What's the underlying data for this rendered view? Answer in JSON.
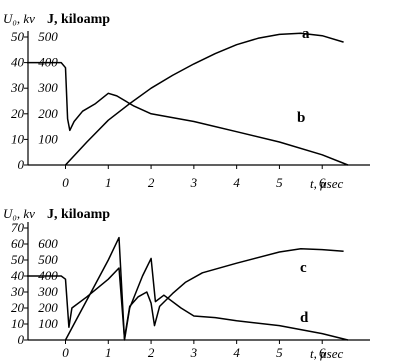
{
  "chart_data": [
    {
      "type": "line",
      "ylabel_left": "U₀, kv",
      "ylabel_right": "J, kiloamp",
      "xlabel": "t, μsec",
      "x_ticks": [
        "0",
        "1",
        "2",
        "3",
        "4",
        "5",
        "6"
      ],
      "y_left_ticks": [
        "0",
        "10",
        "20",
        "30",
        "40",
        "50"
      ],
      "y_right_ticks": [
        "100",
        "200",
        "300",
        "400",
        "500"
      ],
      "xlim": [
        -0.9,
        7
      ],
      "ylim_left": [
        0,
        50
      ],
      "ylim_right": [
        0,
        500
      ],
      "series": [
        {
          "name": "a",
          "axis": "right",
          "x": [
            0,
            0.5,
            1,
            1.5,
            2,
            2.5,
            3,
            3.5,
            4,
            4.5,
            5,
            5.5,
            6,
            6.5
          ],
          "y": [
            0,
            90,
            175,
            240,
            300,
            350,
            395,
            435,
            470,
            495,
            510,
            515,
            505,
            480
          ]
        },
        {
          "name": "b",
          "axis": "left",
          "x": [
            -0.9,
            -0.1,
            0,
            0.05,
            0.1,
            0.2,
            0.4,
            0.7,
            1.0,
            1.2,
            1.6,
            2.0,
            3.0,
            4.0,
            5.0,
            6.0,
            6.6
          ],
          "y": [
            40,
            40,
            38,
            18,
            13.5,
            17,
            21,
            24,
            28,
            27,
            23,
            20,
            17,
            13,
            9,
            4,
            0
          ]
        }
      ]
    },
    {
      "type": "line",
      "ylabel_left": "U₀, kv",
      "ylabel_right": "J, kiloamp",
      "xlabel": "t, μsec",
      "x_ticks": [
        "0",
        "1",
        "2",
        "3",
        "4",
        "5",
        "6"
      ],
      "y_left_ticks": [
        "0",
        "10",
        "20",
        "30",
        "40",
        "50",
        "60",
        "70"
      ],
      "y_right_ticks": [
        "100",
        "200",
        "300",
        "400",
        "500",
        "600"
      ],
      "xlim": [
        -0.9,
        7
      ],
      "ylim_left": [
        0,
        70
      ],
      "ylim_right": [
        0,
        700
      ],
      "series": [
        {
          "name": "c",
          "axis": "right",
          "x": [
            -0.9,
            -0.1,
            0,
            0.08,
            0.15,
            0.5,
            1.0,
            1.25,
            1.38,
            1.5,
            1.7,
            1.9,
            2.0,
            2.08,
            2.2,
            2.5,
            2.8,
            3.2,
            4.0,
            5.0,
            5.5,
            6.0,
            6.5
          ],
          "y": [
            400,
            400,
            380,
            80,
            200,
            270,
            380,
            450,
            10,
            210,
            270,
            300,
            230,
            90,
            210,
            290,
            360,
            420,
            480,
            550,
            570,
            565,
            555
          ]
        },
        {
          "name": "d",
          "axis": "left",
          "x": [
            0,
            0.3,
            0.6,
            1.0,
            1.25,
            1.38,
            1.5,
            1.8,
            2.0,
            2.1,
            2.3,
            2.7,
            3.0,
            3.5,
            4.0,
            5.0,
            6.0,
            6.6
          ],
          "y": [
            0,
            15,
            30,
            50,
            64,
            0,
            20,
            40,
            51,
            24,
            28,
            20,
            15,
            14,
            12,
            9,
            4,
            0
          ]
        }
      ]
    }
  ]
}
